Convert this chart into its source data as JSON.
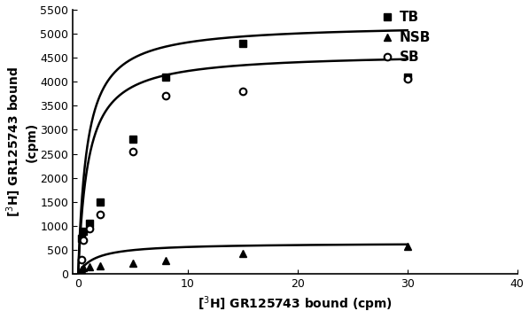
{
  "title": "",
  "xlabel": "[$^{3}$H] GR125743 bound (cpm)",
  "ylabel": "[$^{3}$H] GR125743 bound\n(cpm)",
  "xlim": [
    -0.5,
    40
  ],
  "ylim": [
    0,
    5500
  ],
  "xticks": [
    0,
    10,
    20,
    30,
    40
  ],
  "yticks": [
    0,
    500,
    1000,
    1500,
    2000,
    2500,
    3000,
    3500,
    4000,
    4500,
    5000,
    5500
  ],
  "TB_x": [
    0.3,
    0.5,
    1.0,
    2.0,
    5.0,
    8.0,
    15.0,
    30.0
  ],
  "TB_y": [
    750,
    900,
    1050,
    1500,
    2800,
    4100,
    4800,
    4100
  ],
  "NSB_x": [
    0.3,
    0.5,
    1.0,
    2.0,
    5.0,
    8.0,
    15.0,
    30.0
  ],
  "NSB_y": [
    100,
    130,
    150,
    180,
    220,
    280,
    430,
    580
  ],
  "SB_x": [
    0.3,
    0.5,
    1.0,
    2.0,
    5.0,
    8.0,
    15.0,
    30.0
  ],
  "SB_y": [
    300,
    700,
    950,
    1250,
    2550,
    3700,
    3800,
    4050
  ],
  "TB_Bmax": 5200,
  "TB_Kd": 0.8,
  "NSB_Bmax": 650,
  "NSB_Kd": 1.5,
  "SB_Bmax": 4600,
  "SB_Kd": 0.9,
  "line_color": "#000000",
  "marker_color": "#000000",
  "bg_color": "#ffffff",
  "legend_labels": [
    "TB",
    "NSB",
    "SB"
  ],
  "fontsize_axis_label": 10,
  "fontsize_tick": 9,
  "fontsize_legend": 11
}
